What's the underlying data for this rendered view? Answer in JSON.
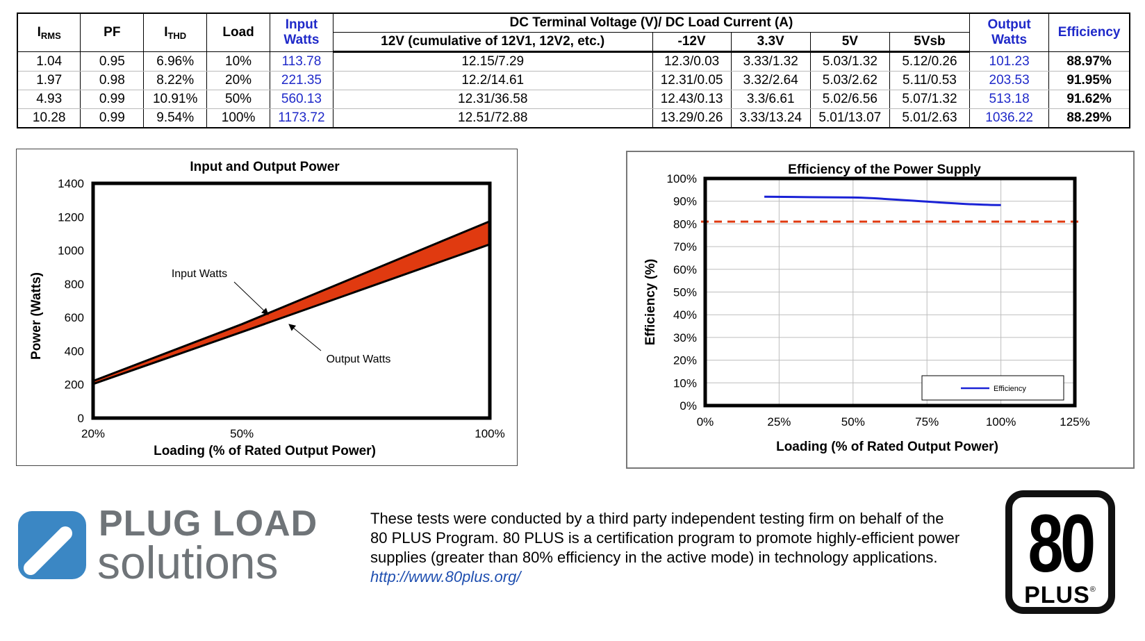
{
  "table": {
    "headers": {
      "irms_main": "I",
      "irms_sub": "RMS",
      "pf": "PF",
      "ithd_main": "I",
      "ithd_sub": "THD",
      "load": "Load",
      "input_watts_1": "Input",
      "input_watts_2": "Watts",
      "dc_group": "DC Terminal Voltage (V)/ DC Load Current (A)",
      "v12": "12V (cumulative of 12V1, 12V2, etc.)",
      "vneg12": "-12V",
      "v33": "3.3V",
      "v5": "5V",
      "v5sb": "5Vsb",
      "output_watts_1": "Output",
      "output_watts_2": "Watts",
      "efficiency": "Efficiency"
    },
    "rows": [
      {
        "irms": "1.04",
        "pf": "0.95",
        "ithd": "6.96%",
        "load": "10%",
        "input": "113.78",
        "v12": "12.15/7.29",
        "vneg12": "12.3/0.03",
        "v33": "3.33/1.32",
        "v5": "5.03/1.32",
        "v5sb": "5.12/0.26",
        "output": "101.23",
        "eff": "88.97%"
      },
      {
        "irms": "1.97",
        "pf": "0.98",
        "ithd": "8.22%",
        "load": "20%",
        "input": "221.35",
        "v12": "12.2/14.61",
        "vneg12": "12.31/0.05",
        "v33": "3.32/2.64",
        "v5": "5.03/2.62",
        "v5sb": "5.11/0.53",
        "output": "203.53",
        "eff": "91.95%"
      },
      {
        "irms": "4.93",
        "pf": "0.99",
        "ithd": "10.91%",
        "load": "50%",
        "input": "560.13",
        "v12": "12.31/36.58",
        "vneg12": "12.43/0.13",
        "v33": "3.3/6.61",
        "v5": "5.02/6.56",
        "v5sb": "5.07/1.32",
        "output": "513.18",
        "eff": "91.62%"
      },
      {
        "irms": "10.28",
        "pf": "0.99",
        "ithd": "9.54%",
        "load": "100%",
        "input": "1173.72",
        "v12": "12.51/72.88",
        "vneg12": "13.29/0.26",
        "v33": "3.33/13.24",
        "v5": "5.01/13.07",
        "v5sb": "5.01/2.63",
        "output": "1036.22",
        "eff": "88.29%"
      }
    ]
  },
  "chart_data": [
    {
      "type": "area",
      "title": "Input and Output Power",
      "xlabel": "Loading (% of Rated Output Power)",
      "ylabel": "Power (Watts)",
      "categories": [
        "20%",
        "50%",
        "100%"
      ],
      "x": [
        20,
        50,
        100
      ],
      "ylim": [
        0,
        1400
      ],
      "yticks": [
        "0",
        "200",
        "400",
        "600",
        "800",
        "1000",
        "1200",
        "1400"
      ],
      "series": [
        {
          "name": "Input Watts",
          "values": [
            221.35,
            560.13,
            1173.72
          ]
        },
        {
          "name": "Output Watts",
          "values": [
            203.53,
            513.18,
            1036.22
          ]
        }
      ],
      "annotations": [
        "Input Watts",
        "Output Watts"
      ],
      "fill_color": "#e03a10"
    },
    {
      "type": "line",
      "title": "Efficiency of the Power Supply",
      "xlabel": "Loading (% of Rated Output Power)",
      "ylabel": "Efficiency (%)",
      "x": [
        20,
        50,
        100
      ],
      "xlim": [
        0,
        125
      ],
      "xticks": [
        "0%",
        "25%",
        "50%",
        "75%",
        "100%",
        "125%"
      ],
      "ylim": [
        0,
        100
      ],
      "yticks": [
        "0%",
        "10%",
        "20%",
        "30%",
        "40%",
        "50%",
        "60%",
        "70%",
        "80%",
        "90%",
        "100%"
      ],
      "grid": true,
      "series": [
        {
          "name": "Efficiency",
          "values": [
            91.95,
            91.62,
            88.29
          ],
          "color": "#1a22d6"
        }
      ],
      "threshold": {
        "value": 81,
        "color": "#e03a10"
      },
      "legend": "bottom-right"
    }
  ],
  "footer": {
    "logo_line1": "PLUG LOAD",
    "logo_line2": "solutions",
    "disclaimer_lines": [
      "These tests were conducted by a third party independent testing firm on behalf of the",
      "80 PLUS Program. 80 PLUS is a certification program to promote highly-efficient power",
      "supplies (greater than 80% efficiency in the active mode) in technology applications."
    ],
    "link": "http://www.80plus.org/",
    "badge_number": "80",
    "badge_text": "PLUS",
    "badge_reg": "®"
  }
}
